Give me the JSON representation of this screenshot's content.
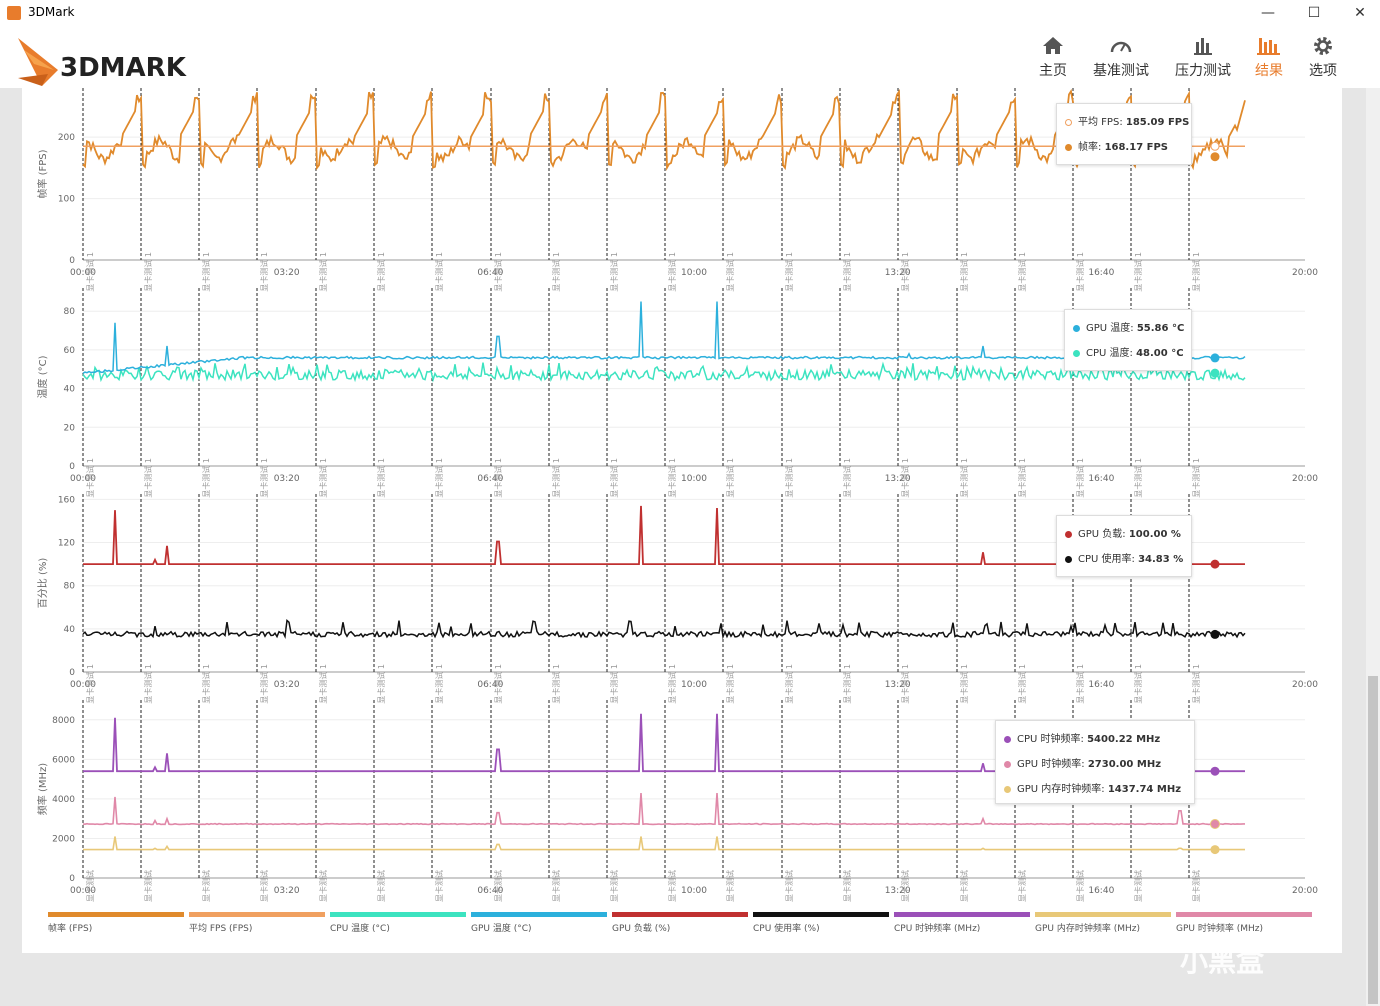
{
  "window": {
    "title": "3DMark",
    "minimize": "—",
    "maximize": "☐",
    "close": "✕"
  },
  "header": {
    "logo": "3DMARK",
    "nav": [
      {
        "label": "主页",
        "icon": "home-icon"
      },
      {
        "label": "基准测试",
        "icon": "gauge-icon"
      },
      {
        "label": "压力测试",
        "icon": "bar-chart-icon"
      },
      {
        "label": "结果",
        "icon": "results-icon",
        "active": true
      },
      {
        "label": "选项",
        "icon": "gear-icon"
      }
    ]
  },
  "colors": {
    "fps": "#e08a2c",
    "avg_fps": "#f0a060",
    "cpu_temp": "#3ce3c0",
    "gpu_temp": "#2cb0dc",
    "gpu_load": "#c03030",
    "cpu_usage": "#111111",
    "cpu_clock": "#9b50b8",
    "gpu_mem_clock": "#e8c878",
    "gpu_clock": "#e088a8"
  },
  "chart_data": [
    {
      "type": "line",
      "ylabel": "帧率 (FPS)",
      "yticks": [
        0,
        100,
        200
      ],
      "ylim": [
        0,
        280
      ],
      "xticks": [
        "00:00",
        "03:20",
        "06:40",
        "10:00",
        "13:20",
        "16:40",
        "20:00"
      ],
      "xlim_seconds": [
        0,
        1200
      ],
      "marker_label": "显卡测试 1",
      "series": [
        {
          "name": "平均 FPS",
          "value": "185.09 FPS"
        },
        {
          "name": "帧率",
          "value": "168.17 FPS"
        }
      ]
    },
    {
      "type": "line",
      "ylabel": "温度 (°C)",
      "yticks": [
        0,
        20,
        40,
        60,
        80
      ],
      "ylim": [
        0,
        92
      ],
      "xticks": [
        "00:00",
        "03:20",
        "06:40",
        "10:00",
        "13:20",
        "16:40",
        "20:00"
      ],
      "marker_label": "显卡测试 1",
      "series": [
        {
          "name": "GPU 温度",
          "value": "55.86 °C"
        },
        {
          "name": "CPU 温度",
          "value": "48.00 °C"
        }
      ]
    },
    {
      "type": "line",
      "ylabel": "百分比 (%)",
      "yticks": [
        0,
        40,
        80,
        120,
        160
      ],
      "ylim": [
        0,
        165
      ],
      "xticks": [
        "00:00",
        "03:20",
        "06:40",
        "10:00",
        "13:20",
        "16:40",
        "20:00"
      ],
      "marker_label": "显卡测试 1",
      "series": [
        {
          "name": "GPU 负载",
          "value": "100.00 %"
        },
        {
          "name": "CPU 使用率",
          "value": "34.83 %"
        }
      ]
    },
    {
      "type": "line",
      "ylabel": "频率 (MHz)",
      "yticks": [
        0,
        2000,
        4000,
        6000,
        8000
      ],
      "ylim": [
        0,
        9000
      ],
      "xticks": [
        "00:00",
        "03:20",
        "06:40",
        "10:00",
        "13:20",
        "16:40",
        "20:00"
      ],
      "marker_label": "显卡测试",
      "series": [
        {
          "name": "CPU 时钟频率",
          "value": "5400.22 MHz"
        },
        {
          "name": "GPU 时钟频率",
          "value": "2730.00 MHz"
        },
        {
          "name": "GPU 内存时钟频率",
          "value": "1437.74 MHz"
        }
      ]
    }
  ],
  "legend": [
    {
      "label": "帧率 (FPS)",
      "color": "#e08a2c"
    },
    {
      "label": "平均 FPS (FPS)",
      "color": "#f0a060"
    },
    {
      "label": "CPU 温度 (°C)",
      "color": "#3ce3c0"
    },
    {
      "label": "GPU 温度 (°C)",
      "color": "#2cb0dc"
    },
    {
      "label": "GPU 负载 (%)",
      "color": "#c03030"
    },
    {
      "label": "CPU 使用率 (%)",
      "color": "#111111"
    },
    {
      "label": "CPU 时钟频率 (MHz)",
      "color": "#9b50b8"
    },
    {
      "label": "GPU 内存时钟频率 (MHz)",
      "color": "#e8c878"
    },
    {
      "label": "GPU 时钟频率 (MHz)",
      "color": "#e088a8"
    }
  ],
  "watermark": "小黑盒"
}
